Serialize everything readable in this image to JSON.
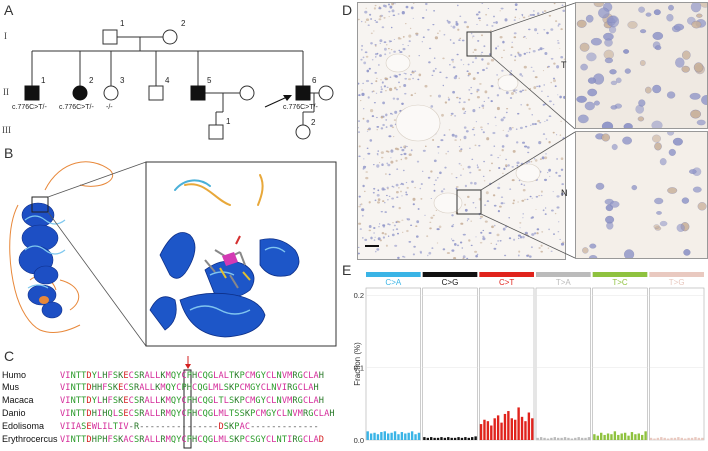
{
  "panel_labels": [
    "A",
    "B",
    "C",
    "D",
    "E"
  ],
  "pedigree": {
    "generations": [
      "I",
      "II",
      "III"
    ],
    "gen1": [
      "1",
      "2"
    ],
    "gen2": [
      "1",
      "2",
      "3",
      "4",
      "5",
      "6"
    ],
    "gen3": [
      "1",
      "2"
    ],
    "genotypes": {
      "II1": "c.776C>T/-",
      "II2": "c.776C>T/-",
      "II3": "-/-",
      "II6": "c.776C>T/-"
    }
  },
  "alignment": {
    "rows": [
      {
        "species": "Humo",
        "seq": "VINTTDYLHFSKECSRALLKMQYCPHCQGLALTKPCMGYCLNVMRGCLAH"
      },
      {
        "species": "Mus",
        "seq": "VINTTDHHFSKECSRALLKMQYCPHCQGLMLSKPCMGYCLNVIRGCLAH"
      },
      {
        "species": "Macaca",
        "seq": "VINTTDYLHFSKECSRALLKMQYCPHCQGLTLSKPCMGYCLNVMRGCLAH"
      },
      {
        "species": "Danio",
        "seq": "VINTTDHIHQLSECSRALLRMQYCPHCQGLMLTSSKPCMGYCLNVMRGCLAH"
      },
      {
        "species": "Edolisoma",
        "seq": "VIIASEWLILTIV-R---------------DSKPAC-------------"
      },
      {
        "species": "Erythrocercus",
        "seq": "VINTTDHPHFSKACSRALLRMQYCPHCQGLMLSKPCSGYCLNTIRGCLAD"
      }
    ]
  },
  "histology": {
    "inset_labels": [
      "T",
      "N"
    ]
  },
  "chart_data": {
    "type": "bar",
    "title": "",
    "ylabel": "Fraction (%)",
    "ylim": [
      0,
      0.21
    ],
    "yticks": [
      0.0,
      0.1,
      0.2
    ],
    "ytick_labels": [
      "0.0",
      "0.1",
      "0.2"
    ],
    "grid": true,
    "series": [
      {
        "name": "C>A",
        "color": "#3ab4e6",
        "values": [
          0.012,
          0.009,
          0.01,
          0.008,
          0.011,
          0.012,
          0.009,
          0.01,
          0.012,
          0.008,
          0.011,
          0.009,
          0.01,
          0.012,
          0.008,
          0.01
        ]
      },
      {
        "name": "C>G",
        "color": "#111111",
        "values": [
          0.004,
          0.003,
          0.004,
          0.003,
          0.003,
          0.004,
          0.003,
          0.004,
          0.003,
          0.003,
          0.004,
          0.003,
          0.004,
          0.003,
          0.004,
          0.005
        ]
      },
      {
        "name": "C>T",
        "color": "#e0231c",
        "values": [
          0.022,
          0.028,
          0.026,
          0.02,
          0.03,
          0.034,
          0.024,
          0.036,
          0.04,
          0.03,
          0.028,
          0.045,
          0.032,
          0.026,
          0.038,
          0.03
        ]
      },
      {
        "name": "T>A",
        "color": "#bbbbbb",
        "values": [
          0.003,
          0.004,
          0.003,
          0.002,
          0.003,
          0.004,
          0.003,
          0.003,
          0.004,
          0.003,
          0.002,
          0.003,
          0.004,
          0.003,
          0.003,
          0.004
        ]
      },
      {
        "name": "T>C",
        "color": "#8fc23f",
        "values": [
          0.008,
          0.006,
          0.01,
          0.007,
          0.009,
          0.008,
          0.012,
          0.007,
          0.009,
          0.01,
          0.006,
          0.011,
          0.008,
          0.009,
          0.007,
          0.012
        ]
      },
      {
        "name": "T>G",
        "color": "#e9c9c0",
        "values": [
          0.003,
          0.002,
          0.003,
          0.004,
          0.003,
          0.002,
          0.003,
          0.003,
          0.004,
          0.003,
          0.002,
          0.003,
          0.003,
          0.004,
          0.003,
          0.003
        ]
      }
    ]
  }
}
